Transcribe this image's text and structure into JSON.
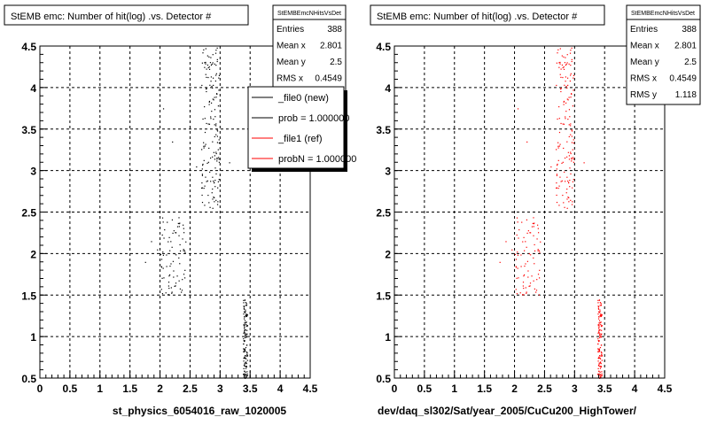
{
  "chart_data": [
    {
      "type": "scatter",
      "title": "StEMB emc: Number of hit(log) .vs. Detector #",
      "xlabel": "st_physics_6054016_raw_1020005",
      "ylabel": "",
      "xlim": [
        0,
        4.5
      ],
      "ylim": [
        0.5,
        4.5
      ],
      "xticks": [
        "0",
        "0.5",
        "1",
        "1.5",
        "2",
        "2.5",
        "3",
        "3.5",
        "4",
        "4.5"
      ],
      "yticks": [
        "0.5",
        "1",
        "1.5",
        "2",
        "2.5",
        "3",
        "3.5",
        "4",
        "4.5"
      ],
      "grid": true,
      "point_color": "#000000",
      "stats": {
        "title": "StEMBEmcNHitsVsDet",
        "rows": [
          {
            "label": "Entries",
            "value": "388"
          },
          {
            "label": "Mean x",
            "value": "2.801"
          },
          {
            "label": "Mean y",
            "value": "2.5"
          },
          {
            "label": "RMS x",
            "value": "0.4549"
          }
        ]
      },
      "legend": {
        "placement": "top-right",
        "entries": [
          {
            "label": "_file0 (new)",
            "color": "#000000"
          },
          {
            "label": "prob = 1.000000",
            "color": "#000000"
          },
          {
            "label": "_file1 (ref)",
            "color": "#ff0000"
          },
          {
            "label": "probN = 1.000000",
            "color": "#ff0000"
          }
        ]
      },
      "clusters": [
        {
          "x": [
            2.68,
            2.98
          ],
          "y": [
            2.55,
            4.5
          ],
          "n": 150
        },
        {
          "x": [
            2.0,
            2.45
          ],
          "y": [
            1.5,
            2.45
          ],
          "n": 80
        },
        {
          "x": [
            3.38,
            3.45
          ],
          "y": [
            0.5,
            1.45
          ],
          "n": 130
        }
      ],
      "points": [
        [
          1.75,
          1.9
        ],
        [
          1.85,
          2.15
        ],
        [
          2.2,
          3.35
        ],
        [
          2.6,
          3.05
        ],
        [
          3.15,
          3.1
        ],
        [
          2.05,
          3.75
        ],
        [
          1.95,
          2.05
        ]
      ]
    },
    {
      "type": "scatter",
      "title": "StEMB emc: Number of hit(log) .vs. Detector #",
      "xlabel": "dev/daq_sl302/Sat/year_2005/CuCu200_HighTower/",
      "ylabel": "",
      "xlim": [
        0,
        4.5
      ],
      "ylim": [
        0.5,
        4.5
      ],
      "xticks": [
        "0",
        "0.5",
        "1",
        "1.5",
        "2",
        "2.5",
        "3",
        "3.5",
        "4",
        "4.5"
      ],
      "yticks": [
        "0.5",
        "1",
        "1.5",
        "2",
        "2.5",
        "3",
        "3.5",
        "4",
        "4.5"
      ],
      "grid": true,
      "point_color": "#ff0000",
      "stats": {
        "title": "StEMBEmcNHitsVsDet",
        "rows": [
          {
            "label": "Entries",
            "value": "388"
          },
          {
            "label": "Mean x",
            "value": "2.801"
          },
          {
            "label": "Mean y",
            "value": "2.5"
          },
          {
            "label": "RMS x",
            "value": "0.4549"
          },
          {
            "label": "RMS y",
            "value": "1.118"
          }
        ]
      },
      "clusters": [
        {
          "x": [
            2.68,
            2.98
          ],
          "y": [
            2.55,
            4.5
          ],
          "n": 150
        },
        {
          "x": [
            2.0,
            2.45
          ],
          "y": [
            1.5,
            2.45
          ],
          "n": 80
        },
        {
          "x": [
            3.38,
            3.45
          ],
          "y": [
            0.5,
            1.45
          ],
          "n": 130
        }
      ],
      "points": [
        [
          1.75,
          1.9
        ],
        [
          1.85,
          2.15
        ],
        [
          2.2,
          3.35
        ],
        [
          2.6,
          3.05
        ],
        [
          3.15,
          3.1
        ],
        [
          2.05,
          3.75
        ],
        [
          1.95,
          2.05
        ]
      ]
    }
  ]
}
